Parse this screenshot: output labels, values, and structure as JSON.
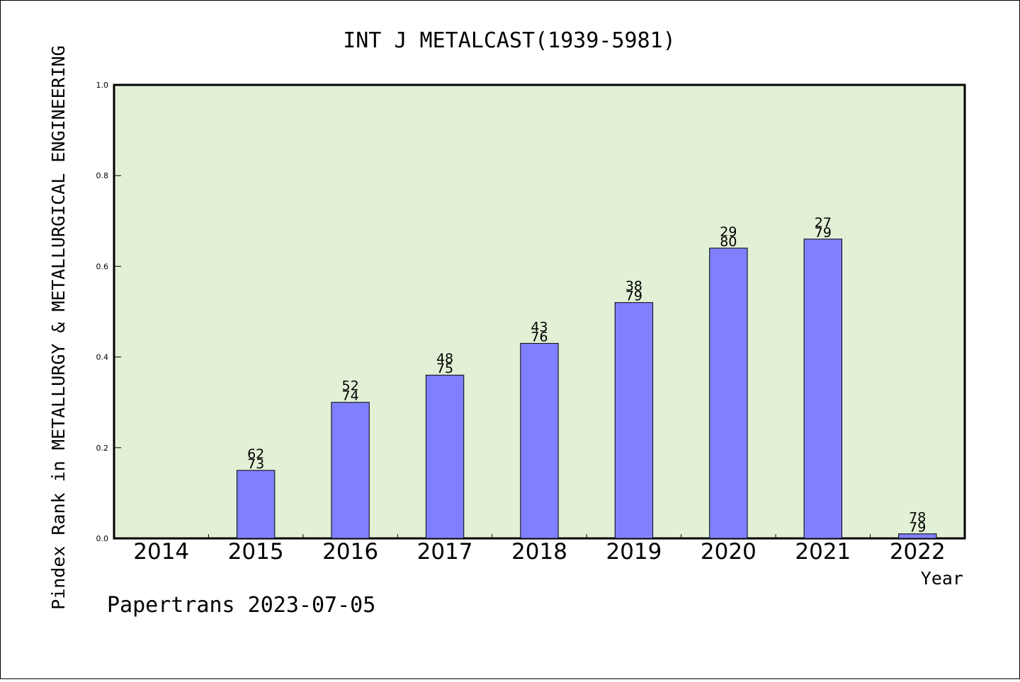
{
  "chart_data": {
    "type": "bar",
    "title": "INT J METALCAST(1939-5981)",
    "xlabel": "Year",
    "ylabel": "Pindex Rank in METALLURGY & METALLURGICAL ENGINEERING",
    "footer": "Papertrans 2023-07-05",
    "ylim": [
      0,
      1.0
    ],
    "yticks": [
      "0.0",
      "0.2",
      "0.4",
      "0.6",
      "0.8",
      "1.0"
    ],
    "categories": [
      "2014",
      "2015",
      "2016",
      "2017",
      "2018",
      "2019",
      "2020",
      "2021",
      "2022"
    ],
    "values": [
      null,
      0.15,
      0.3,
      0.36,
      0.43,
      0.52,
      0.64,
      0.66,
      0.01
    ],
    "rank": [
      null,
      "62",
      "52",
      "48",
      "43",
      "38",
      "29",
      "27",
      "78"
    ],
    "total": [
      null,
      "73",
      "74",
      "75",
      "76",
      "79",
      "80",
      "79",
      "79"
    ],
    "colors": {
      "plot_bg": "#e2f0d6",
      "bar": "#8080ff",
      "axis": "#000000"
    },
    "grid": false
  }
}
